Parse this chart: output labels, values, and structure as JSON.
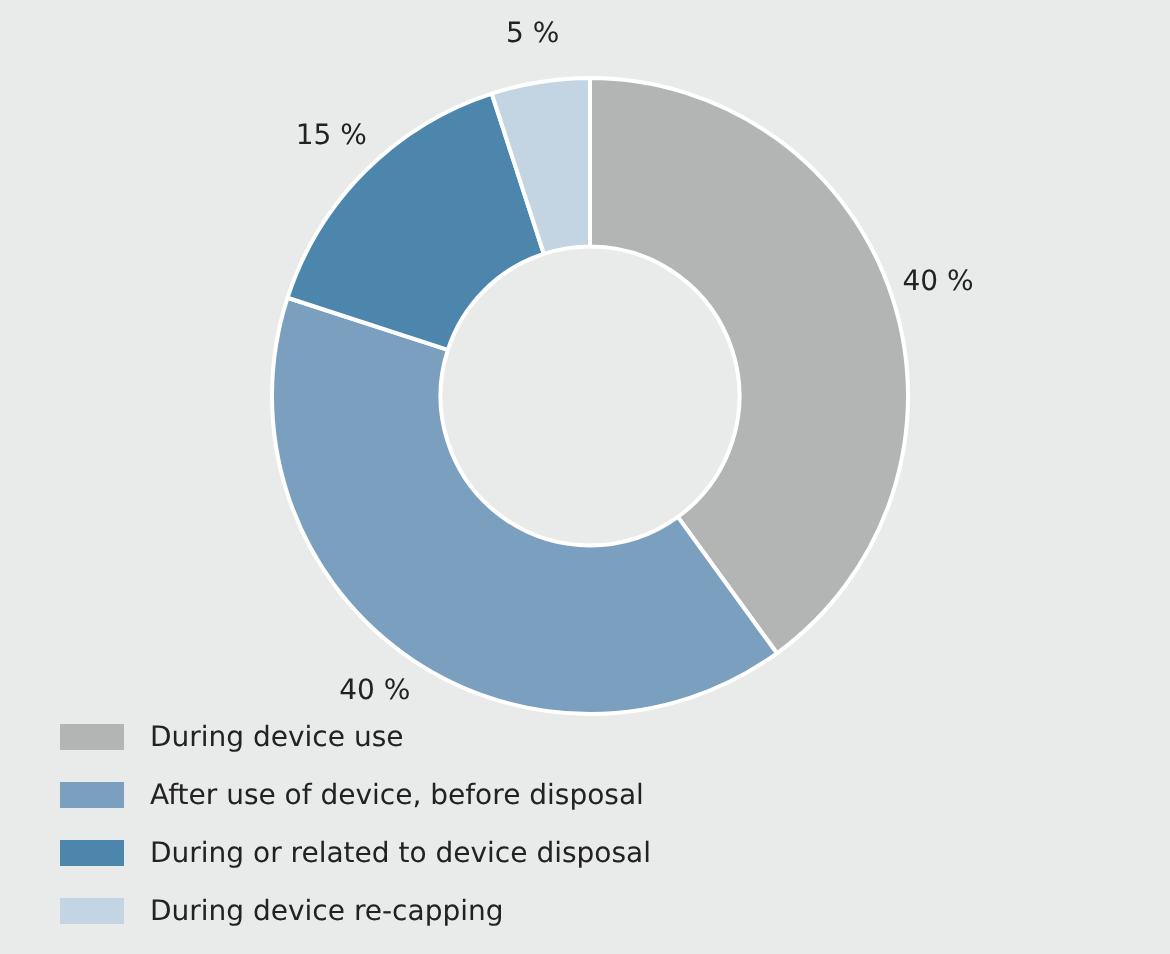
{
  "chart_data": {
    "type": "donut",
    "categories": [
      "During device use",
      "After use of device, before disposal",
      "During or related to device disposal",
      "During device re-capping"
    ],
    "values": [
      40,
      40,
      15,
      5
    ],
    "colors": [
      "#b3b4b4",
      "#7b9fbf",
      "#4c86ad",
      "#c3d4e2"
    ],
    "value_labels": [
      "40 %",
      "40 %",
      "15 %",
      "5 %"
    ],
    "legend": "bottom left"
  }
}
